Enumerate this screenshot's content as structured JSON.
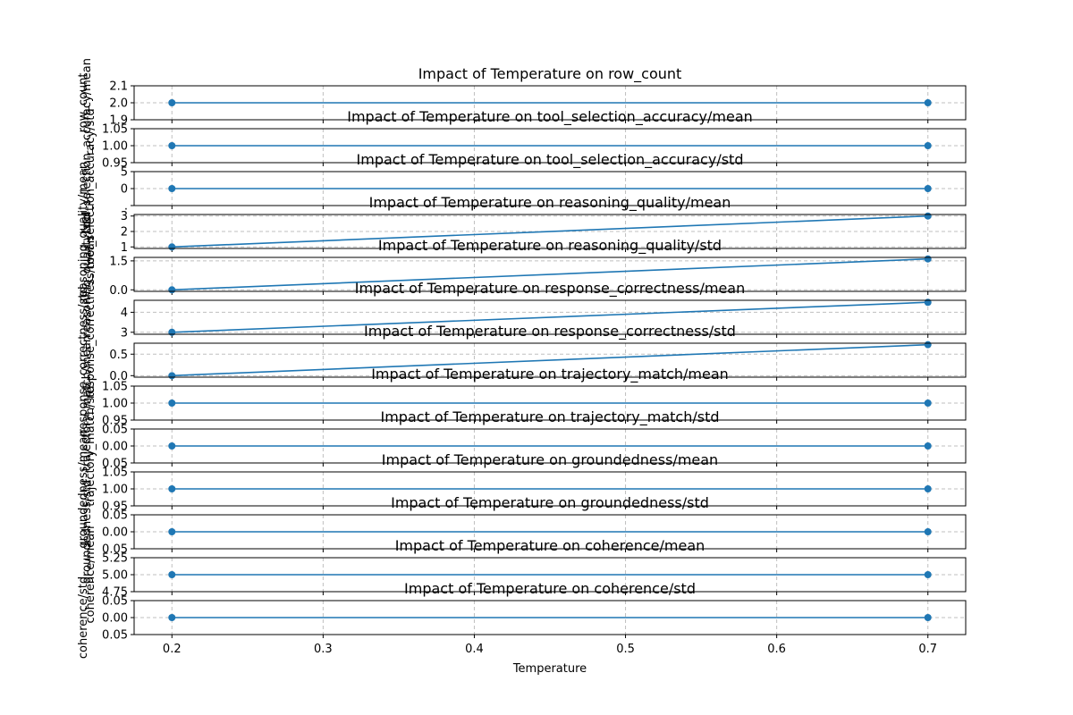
{
  "chart_data": {
    "type": "line",
    "xlabel": "Temperature",
    "x": [
      0.2,
      0.7
    ],
    "xlim": [
      0.175,
      0.725
    ],
    "xticks": [
      0.2,
      0.3,
      0.4,
      0.5,
      0.6,
      0.7
    ],
    "xtick_labels": [
      "0.2",
      "0.3",
      "0.4",
      "0.5",
      "0.6",
      "0.7"
    ],
    "grid": true,
    "color": "#1f77b4",
    "panels": [
      {
        "title": "Impact of Temperature on row_count",
        "ylabel": "row_count",
        "values": [
          2.0,
          2.0
        ],
        "ylim": [
          1.9,
          2.1
        ],
        "yticks": [
          1.9,
          2.0,
          2.1
        ],
        "ytick_labels": [
          "1.9",
          "2.0",
          "2.1"
        ]
      },
      {
        "title": "Impact of Temperature on tool_selection_accuracy/mean",
        "ylabel": "tool_selection_accuracy/mean",
        "values": [
          1.0,
          1.0
        ],
        "ylim": [
          0.95,
          1.05
        ],
        "yticks": [
          0.95,
          1.0,
          1.05
        ],
        "ytick_labels": [
          "0.95",
          "1.00",
          "1.05"
        ]
      },
      {
        "title": "Impact of Temperature on tool_selection_accuracy/std",
        "ylabel": "tool_selection_accuracy/std",
        "values": [
          0.0,
          0.0
        ],
        "ylim": [
          -0.05,
          0.05
        ],
        "yticks": [
          -0.05,
          0.0,
          0.05
        ],
        "ytick_labels": ".05|0.00|0.05"
      },
      {
        "title": "Impact of Temperature on reasoning_quality/mean",
        "ylabel": "reasoning_quality/mean",
        "values": [
          1.0,
          3.0
        ],
        "ylim": [
          0.9,
          3.1
        ],
        "yticks": [
          1,
          2,
          3
        ],
        "ytick_labels": [
          "1",
          "2",
          "3"
        ]
      },
      {
        "title": "Impact of Temperature on reasoning_quality/std",
        "ylabel": "reasoning_quality/std",
        "values": [
          0.0,
          1.6
        ],
        "ylim": [
          -0.08,
          1.68
        ],
        "yticks": [
          0.0,
          1.5
        ],
        "ytick_labels": [
          "0.0",
          "1.5"
        ]
      },
      {
        "title": "Impact of Temperature on response_correctness/mean",
        "ylabel": "response_correctness/mean",
        "values": [
          3.0,
          4.5
        ],
        "ylim": [
          2.9,
          4.6
        ],
        "yticks": [
          3,
          4
        ],
        "ytick_labels": [
          "3",
          "4"
        ]
      },
      {
        "title": "Impact of Temperature on response_correctness/std",
        "ylabel": "response_correctness/std",
        "values": [
          0.0,
          0.72
        ],
        "ylim": [
          -0.035,
          0.755
        ],
        "yticks": [
          0.0,
          0.5
        ],
        "ytick_labels": [
          "0.0",
          "0.5"
        ]
      },
      {
        "title": "Impact of Temperature on trajectory_match/mean",
        "ylabel": "trajectory_match/mean",
        "values": [
          1.0,
          1.0
        ],
        "ylim": [
          0.95,
          1.05
        ],
        "yticks": [
          0.95,
          1.0,
          1.05
        ],
        "ytick_labels": [
          "0.95",
          "1.00",
          "1.05"
        ]
      },
      {
        "title": "Impact of Temperature on trajectory_match/std",
        "ylabel": "trajectory_match/std",
        "values": [
          0.0,
          0.0
        ],
        "ylim": [
          -0.05,
          0.05
        ],
        "yticks": [
          -0.05,
          0.0,
          0.05
        ],
        "ytick_labels": [
          "0.05",
          "0.00",
          "0.05"
        ]
      },
      {
        "title": "Impact of Temperature on groundedness/mean",
        "ylabel": "groundedness/mean",
        "values": [
          1.0,
          1.0
        ],
        "ylim": [
          0.95,
          1.05
        ],
        "yticks": [
          0.95,
          1.0,
          1.05
        ],
        "ytick_labels": [
          "0.95",
          "1.00",
          "1.05"
        ]
      },
      {
        "title": "Impact of Temperature on groundedness/std",
        "ylabel": "groundedness/std",
        "values": [
          0.0,
          0.0
        ],
        "ylim": [
          -0.05,
          0.05
        ],
        "yticks": [
          -0.05,
          0.0,
          0.05
        ],
        "ytick_labels": [
          "0.05",
          "0.00",
          "0.05"
        ]
      },
      {
        "title": "Impact of Temperature on coherence/mean",
        "ylabel": "coherence/mean",
        "values": [
          5.0,
          5.0
        ],
        "ylim": [
          4.75,
          5.25
        ],
        "yticks": [
          4.75,
          5.0,
          5.25
        ],
        "ytick_labels": [
          "4.75",
          "5.00",
          "5.25"
        ]
      },
      {
        "title": "Impact of Temperature on coherence/std",
        "ylabel": "coherence/std",
        "values": [
          0.0,
          0.0
        ],
        "ylim": [
          -0.05,
          0.05
        ],
        "yticks": [
          -0.05,
          0.0,
          0.05
        ],
        "ytick_labels": [
          "0.05",
          "0.00",
          "0.05"
        ]
      }
    ]
  }
}
